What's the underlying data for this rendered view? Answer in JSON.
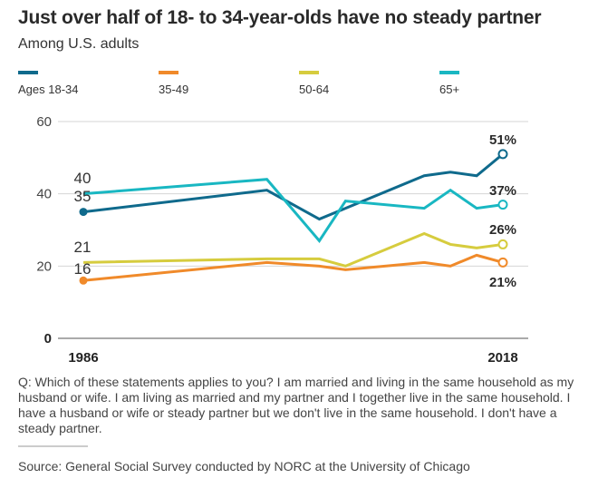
{
  "chart_data": {
    "type": "line",
    "title": "Just over half of 18- to 34-year-olds have no steady partner",
    "subtitle": "Among U.S. adults",
    "xlabel": "",
    "ylabel": "",
    "x": [
      1986,
      2000,
      2004,
      2006,
      2012,
      2014,
      2016,
      2018
    ],
    "x_tick_labels": [
      "1986",
      "2018"
    ],
    "y_ticks": [
      0,
      20,
      40,
      60
    ],
    "y_tick_labels": [
      "0",
      "20",
      "40",
      "60"
    ],
    "ylim": [
      0,
      60
    ],
    "grid": true,
    "legend_position": "top",
    "series": [
      {
        "name": "Ages 18-34",
        "color": "#0f6a8c",
        "values": [
          35,
          41,
          33,
          36,
          45,
          46,
          45,
          51
        ],
        "start_label": "35",
        "end_label": "51%"
      },
      {
        "name": "35-49",
        "color": "#f08a2a",
        "values": [
          16,
          21,
          20,
          19,
          21,
          20,
          23,
          21
        ],
        "start_label": "16",
        "end_label": "21%"
      },
      {
        "name": "50-64",
        "color": "#d6cc3e",
        "values": [
          21,
          22,
          22,
          20,
          29,
          26,
          25,
          26
        ],
        "start_label": "21",
        "end_label": "26%"
      },
      {
        "name": "65+",
        "color": "#19b7c2",
        "values": [
          40,
          44,
          27,
          38,
          36,
          41,
          36,
          37
        ],
        "start_label": "40",
        "end_label": "37%"
      }
    ]
  },
  "note": "Q: Which of these statements applies to you? I am married and living in the same household as my husband or wife. I am living as married and my partner and I together live in the same household. I have a husband or wife or steady partner but we don't live in the same household. I don't have a steady partner.",
  "source": "Source: General Social Survey conducted by NORC at the University of Chicago"
}
